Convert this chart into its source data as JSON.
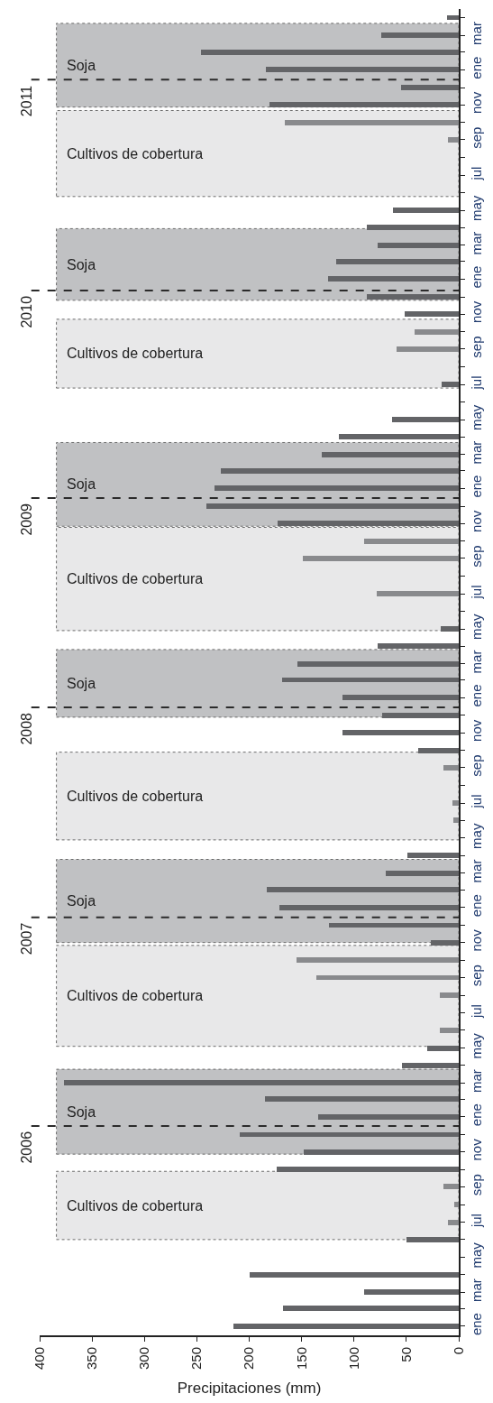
{
  "chart_data": {
    "type": "bar",
    "orientation": "horizontal",
    "xlabel": "Precipitaciones (mm)",
    "x": [
      "2006-01",
      "2006-02",
      "2006-03",
      "2006-04",
      "2006-05",
      "2006-06",
      "2006-07",
      "2006-08",
      "2006-09",
      "2006-10",
      "2006-11",
      "2006-12",
      "2007-01",
      "2007-02",
      "2007-03",
      "2007-04",
      "2007-05",
      "2007-06",
      "2007-07",
      "2007-08",
      "2007-09",
      "2007-10",
      "2007-11",
      "2007-12",
      "2008-01",
      "2008-02",
      "2008-03",
      "2008-04",
      "2008-05",
      "2008-06",
      "2008-07",
      "2008-08",
      "2008-09",
      "2008-10",
      "2008-11",
      "2008-12",
      "2009-01",
      "2009-02",
      "2009-03",
      "2009-04",
      "2009-05",
      "2009-06",
      "2009-07",
      "2009-08",
      "2009-09",
      "2009-10",
      "2009-11",
      "2009-12",
      "2010-01",
      "2010-02",
      "2010-03",
      "2010-04",
      "2010-05",
      "2010-06",
      "2010-07",
      "2010-08",
      "2010-09",
      "2010-10",
      "2010-11",
      "2010-12",
      "2011-01",
      "2011-02",
      "2011-03",
      "2011-04",
      "2011-05",
      "2011-06",
      "2011-07",
      "2011-08",
      "2011-09",
      "2011-10",
      "2011-11",
      "2011-12",
      "2012-01",
      "2012-02",
      "2012-03",
      "2012-04"
    ],
    "values": [
      215,
      168,
      90,
      200,
      0,
      50,
      10,
      4,
      15,
      174,
      148,
      209,
      134,
      185,
      377,
      54,
      30,
      18,
      0,
      18,
      136,
      155,
      27,
      124,
      171,
      183,
      70,
      49,
      0,
      5,
      6,
      0,
      15,
      39,
      111,
      73,
      111,
      169,
      154,
      77,
      17,
      0,
      78,
      0,
      149,
      90,
      173,
      241,
      233,
      227,
      131,
      114,
      64,
      0,
      16,
      0,
      59,
      42,
      52,
      88,
      125,
      117,
      77,
      88,
      63,
      0,
      0,
      0,
      10,
      166,
      181,
      55,
      184,
      246,
      74,
      11
    ],
    "colors": [
      "#636467",
      "#636467",
      "#636467",
      "#636467",
      "#636467",
      "#636467",
      "#898a8d",
      "#898a8d",
      "#898a8d",
      "#636467",
      "#636467",
      "#636467",
      "#636467",
      "#636467",
      "#636467",
      "#636467",
      "#636467",
      "#898a8d",
      "#636467",
      "#898a8d",
      "#898a8d",
      "#898a8d",
      "#636467",
      "#636467",
      "#636467",
      "#636467",
      "#636467",
      "#636467",
      "#636467",
      "#898a8d",
      "#898a8d",
      "#636467",
      "#898a8d",
      "#636467",
      "#636467",
      "#636467",
      "#636467",
      "#636467",
      "#636467",
      "#636467",
      "#636467",
      "#636467",
      "#898a8d",
      "#636467",
      "#898a8d",
      "#898a8d",
      "#636467",
      "#636467",
      "#636467",
      "#636467",
      "#636467",
      "#636467",
      "#636467",
      "#636467",
      "#636467",
      "#636467",
      "#898a8d",
      "#898a8d",
      "#636467",
      "#636467",
      "#636467",
      "#636467",
      "#636467",
      "#636467",
      "#636467",
      "#636467",
      "#636467",
      "#636467",
      "#898a8d",
      "#898a8d",
      "#636467",
      "#636467",
      "#636467",
      "#636467",
      "#636467",
      "#636467"
    ],
    "xlim": [
      400,
      0
    ],
    "xticks": [
      0,
      50,
      100,
      150,
      200,
      250,
      300,
      350,
      400
    ],
    "ylim": [
      "2005-12-16",
      "2012-04-16"
    ],
    "yticks": [
      {
        "value": "2006-01",
        "label": "ene"
      },
      {
        "value": "2006-02",
        "label": null
      },
      {
        "value": "2006-03",
        "label": "mar"
      },
      {
        "value": "2006-04",
        "label": null
      },
      {
        "value": "2006-05",
        "label": "may"
      },
      {
        "value": "2006-06",
        "label": null
      },
      {
        "value": "2006-07",
        "label": "jul"
      },
      {
        "value": "2006-08",
        "label": null
      },
      {
        "value": "2006-09",
        "label": "sep"
      },
      {
        "value": "2006-10",
        "label": null
      },
      {
        "value": "2006-11",
        "label": "nov"
      },
      {
        "value": "2006-12",
        "label": null
      },
      {
        "value": "2007-01",
        "label": "ene"
      },
      {
        "value": "2007-02",
        "label": null
      },
      {
        "value": "2007-03",
        "label": "mar"
      },
      {
        "value": "2007-04",
        "label": null
      },
      {
        "value": "2007-05",
        "label": "may"
      },
      {
        "value": "2007-06",
        "label": null
      },
      {
        "value": "2007-07",
        "label": "jul"
      },
      {
        "value": "2007-08",
        "label": null
      },
      {
        "value": "2007-09",
        "label": "sep"
      },
      {
        "value": "2007-10",
        "label": null
      },
      {
        "value": "2007-11",
        "label": "nov"
      },
      {
        "value": "2007-12",
        "label": null
      },
      {
        "value": "2008-01",
        "label": "ene"
      },
      {
        "value": "2008-02",
        "label": null
      },
      {
        "value": "2008-03",
        "label": "mar"
      },
      {
        "value": "2008-04",
        "label": null
      },
      {
        "value": "2008-05",
        "label": "may"
      },
      {
        "value": "2008-06",
        "label": null
      },
      {
        "value": "2008-07",
        "label": "jul"
      },
      {
        "value": "2008-08",
        "label": null
      },
      {
        "value": "2008-09",
        "label": "sep"
      },
      {
        "value": "2008-10",
        "label": null
      },
      {
        "value": "2008-11",
        "label": "nov"
      },
      {
        "value": "2008-12",
        "label": null
      },
      {
        "value": "2009-01",
        "label": "ene"
      },
      {
        "value": "2009-02",
        "label": null
      },
      {
        "value": "2009-03",
        "label": "mar"
      },
      {
        "value": "2009-04",
        "label": null
      },
      {
        "value": "2009-05",
        "label": "may"
      },
      {
        "value": "2009-06",
        "label": null
      },
      {
        "value": "2009-07",
        "label": "jul"
      },
      {
        "value": "2009-08",
        "label": null
      },
      {
        "value": "2009-09",
        "label": "sep"
      },
      {
        "value": "2009-10",
        "label": null
      },
      {
        "value": "2009-11",
        "label": "nov"
      },
      {
        "value": "2009-12",
        "label": null
      },
      {
        "value": "2010-01",
        "label": "ene"
      },
      {
        "value": "2010-02",
        "label": null
      },
      {
        "value": "2010-03",
        "label": "mar"
      },
      {
        "value": "2010-04",
        "label": null
      },
      {
        "value": "2010-05",
        "label": "may"
      },
      {
        "value": "2010-06",
        "label": null
      },
      {
        "value": "2010-07",
        "label": "jul"
      },
      {
        "value": "2010-08",
        "label": null
      },
      {
        "value": "2010-09",
        "label": "sep"
      },
      {
        "value": "2010-10",
        "label": null
      },
      {
        "value": "2010-11",
        "label": "nov"
      },
      {
        "value": "2010-12",
        "label": null
      },
      {
        "value": "2011-01",
        "label": "ene"
      },
      {
        "value": "2011-02",
        "label": null
      },
      {
        "value": "2011-03",
        "label": "mar"
      },
      {
        "value": "2011-04",
        "label": null
      },
      {
        "value": "2011-05",
        "label": "may"
      },
      {
        "value": "2011-06",
        "label": null
      },
      {
        "value": "2011-07",
        "label": "jul"
      },
      {
        "value": "2011-08",
        "label": null
      },
      {
        "value": "2011-09",
        "label": "sep"
      },
      {
        "value": "2011-10",
        "label": null
      },
      {
        "value": "2011-11",
        "label": "nov"
      },
      {
        "value": "2011-12",
        "label": null
      },
      {
        "value": "2012-01",
        "label": "ene"
      },
      {
        "value": "2012-02",
        "label": null
      },
      {
        "value": "2012-03",
        "label": "mar"
      },
      {
        "value": "2012-04",
        "label": null
      }
    ],
    "bands": [
      {
        "axis": "y",
        "from": "2006-06-01",
        "to": "2006-09-28",
        "label": "Cultivos de cobertura",
        "color": "#e8e8e9"
      },
      {
        "axis": "y",
        "from": "2006-10-28",
        "to": "2007-03-25",
        "label": "Soja",
        "color": "#c0c1c3"
      },
      {
        "axis": "y",
        "from": "2007-05-04",
        "to": "2007-10-27",
        "label": "Cultivos de cobertura",
        "color": "#e8e8e9"
      },
      {
        "axis": "y",
        "from": "2007-11-01",
        "to": "2008-03-25",
        "label": "Soja",
        "color": "#c0c1c3"
      },
      {
        "axis": "y",
        "from": "2008-04-28",
        "to": "2008-09-28",
        "label": "Cultivos de cobertura",
        "color": "#e8e8e9"
      },
      {
        "axis": "y",
        "from": "2008-11-28",
        "to": "2009-03-26",
        "label": "Soja",
        "color": "#c0c1c3"
      },
      {
        "axis": "y",
        "from": "2009-04-28",
        "to": "2009-10-25",
        "label": "Cultivos de cobertura",
        "color": "#e8e8e9"
      },
      {
        "axis": "y",
        "from": "2009-10-27",
        "to": "2010-03-22",
        "label": "Soja",
        "color": "#c0c1c3"
      },
      {
        "axis": "y",
        "from": "2010-06-25",
        "to": "2010-10-23",
        "label": "Cultivos de cobertura",
        "color": "#e8e8e9"
      },
      {
        "axis": "y",
        "from": "2010-11-25",
        "to": "2011-03-30",
        "label": "Soja",
        "color": "#c0c1c3"
      },
      {
        "axis": "y",
        "from": "2011-05-25",
        "to": "2011-10-22",
        "label": "Cultivos de cobertura",
        "color": "#e8e8e9"
      },
      {
        "axis": "y",
        "from": "2011-10-28",
        "to": "2012-03-22",
        "label": "Soja",
        "color": "#c0c1c3"
      }
    ],
    "ref_lines": [
      {
        "axis": "y",
        "value": "2006-12-16",
        "label": "2006",
        "line_style": "dashed",
        "color": "#2b2b2b"
      },
      {
        "axis": "y",
        "value": "2007-12-15",
        "label": "2007",
        "line_style": "dashed",
        "color": "#2b2b2b"
      },
      {
        "axis": "y",
        "value": "2008-12-15",
        "label": "2008",
        "line_style": "dashed",
        "color": "#2b2b2b"
      },
      {
        "axis": "y",
        "value": "2009-12-15",
        "label": "2009",
        "line_style": "dashed",
        "color": "#2b2b2b"
      },
      {
        "axis": "y",
        "value": "2010-12-12",
        "label": "2010",
        "line_style": "dashed",
        "color": "#2b2b2b"
      },
      {
        "axis": "y",
        "value": "2011-12-15",
        "label": "2011",
        "line_style": "dashed",
        "color": "#2b2b2b"
      }
    ]
  }
}
